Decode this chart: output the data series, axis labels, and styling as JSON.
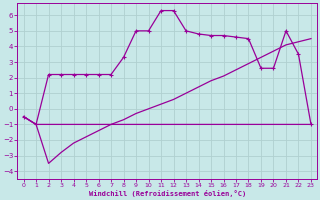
{
  "xlabel": "Windchill (Refroidissement éolien,°C)",
  "bg_color": "#c8e8e8",
  "line_color": "#990099",
  "grid_color": "#b0d0d0",
  "ylim": [
    -4.5,
    6.8
  ],
  "xlim": [
    -0.5,
    23.5
  ],
  "yticks": [
    -4,
    -3,
    -2,
    -1,
    0,
    1,
    2,
    3,
    4,
    5,
    6
  ],
  "xticks": [
    0,
    1,
    2,
    3,
    4,
    5,
    6,
    7,
    8,
    9,
    10,
    11,
    12,
    13,
    14,
    15,
    16,
    17,
    18,
    19,
    20,
    21,
    22,
    23
  ],
  "line1_x": [
    0,
    1,
    2,
    3,
    4,
    5,
    6,
    7,
    8,
    9,
    10,
    11,
    12,
    13,
    14,
    15,
    16,
    17,
    18,
    19,
    20,
    21,
    22,
    23
  ],
  "line1_y": [
    -0.5,
    -1.0,
    2.2,
    2.2,
    2.2,
    2.2,
    2.2,
    2.2,
    3.3,
    5.0,
    5.0,
    6.3,
    6.3,
    5.0,
    4.8,
    4.7,
    4.7,
    4.6,
    4.5,
    2.6,
    2.6,
    5.0,
    3.5,
    -1.0
  ],
  "line2_x": [
    0,
    1,
    2,
    3,
    4,
    5,
    6,
    7,
    8,
    9,
    10,
    11,
    12,
    13,
    14,
    15,
    16,
    17,
    18,
    19,
    20,
    21,
    22,
    23
  ],
  "line2_y": [
    -0.5,
    -1.0,
    -3.5,
    -2.8,
    -2.2,
    -1.8,
    -1.4,
    -1.0,
    -0.7,
    -0.3,
    0.0,
    0.3,
    0.6,
    1.0,
    1.4,
    1.8,
    2.1,
    2.5,
    2.9,
    3.3,
    3.7,
    4.1,
    4.3,
    4.5
  ],
  "line3_x": [
    0,
    1,
    23
  ],
  "line3_y": [
    -0.5,
    -1.0,
    -1.0
  ]
}
